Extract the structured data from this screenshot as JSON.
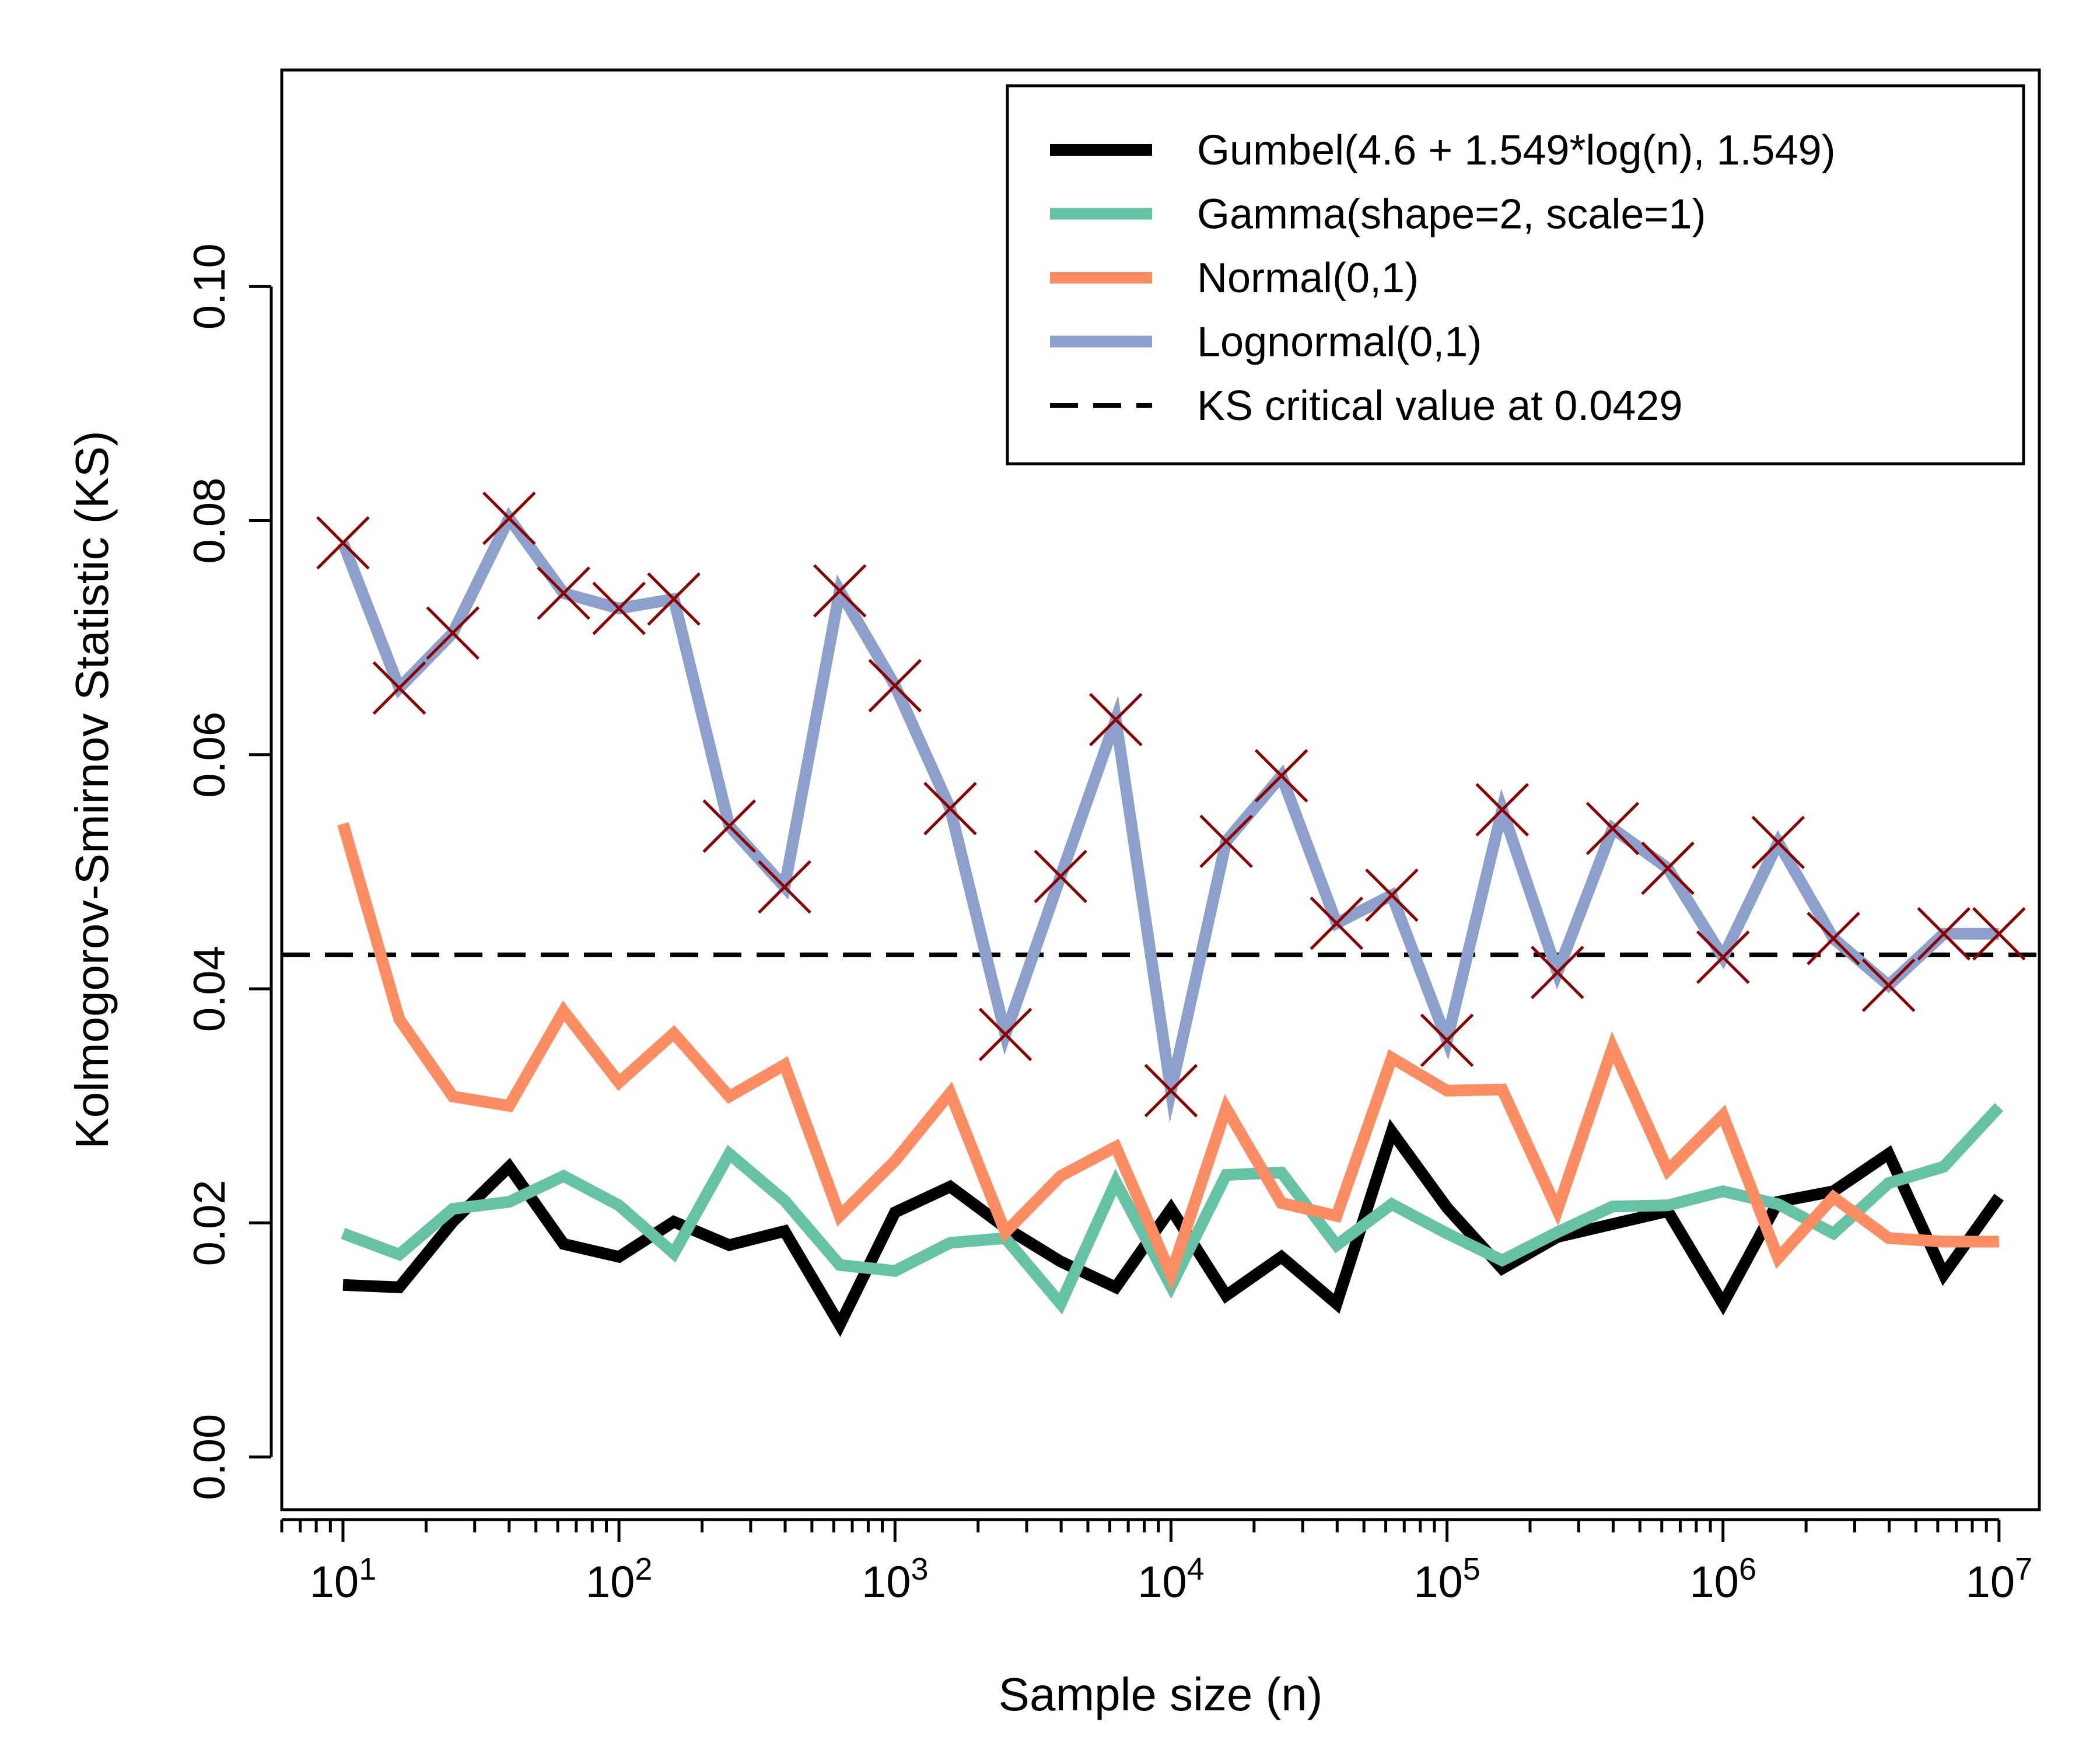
{
  "chart_data": {
    "type": "line",
    "xlabel": "Sample size (n)",
    "ylabel": "Kolmogorov-Smirnov Statistic (KS)",
    "x_scale": "log10",
    "xlim": [
      6,
      14000000
    ],
    "ylim": [
      -0.0045,
      0.1185
    ],
    "x_ticks": [
      {
        "value": 10,
        "base": "10",
        "exp": "1"
      },
      {
        "value": 100,
        "base": "10",
        "exp": "2"
      },
      {
        "value": 1000,
        "base": "10",
        "exp": "3"
      },
      {
        "value": 10000,
        "base": "10",
        "exp": "4"
      },
      {
        "value": 100000,
        "base": "10",
        "exp": "5"
      },
      {
        "value": 1000000,
        "base": "10",
        "exp": "6"
      },
      {
        "value": 10000000,
        "base": "10",
        "exp": "7"
      }
    ],
    "y_ticks": [
      {
        "value": 0.0,
        "label": "0.00"
      },
      {
        "value": 0.02,
        "label": "0.02"
      },
      {
        "value": 0.04,
        "label": "0.04"
      },
      {
        "value": 0.06,
        "label": "0.06"
      },
      {
        "value": 0.08,
        "label": "0.08"
      },
      {
        "value": 0.1,
        "label": "0.10"
      }
    ],
    "x": [
      10,
      16,
      25,
      40,
      63,
      100,
      158,
      251,
      398,
      631,
      1000,
      1585,
      2512,
      3981,
      6310,
      10000,
      15849,
      25119,
      39811,
      63096,
      100000,
      158489,
      251189,
      398107,
      630957,
      1000000,
      1584893,
      2511886,
      3981072,
      6309573,
      10000000
    ],
    "series": [
      {
        "name": "Gumbel(4.6 + 1.549*log(n), 1.549)",
        "color": "#000000",
        "values": [
          0.0147,
          0.0145,
          0.0201,
          0.0248,
          0.0182,
          0.0171,
          0.0201,
          0.0181,
          0.0193,
          0.0113,
          0.0209,
          0.0231,
          0.0196,
          0.0167,
          0.0145,
          0.0212,
          0.0138,
          0.0171,
          0.0131,
          0.0278,
          0.0213,
          0.0161,
          0.0188,
          0.0199,
          0.021,
          0.0131,
          0.0218,
          0.0227,
          0.0259,
          0.0156,
          0.0222
        ]
      },
      {
        "name": "Gamma(shape=2, scale=1)",
        "color": "#66C2A5",
        "values": [
          0.0191,
          0.0173,
          0.0212,
          0.0218,
          0.024,
          0.0215,
          0.0174,
          0.0259,
          0.0219,
          0.0164,
          0.0159,
          0.0183,
          0.0187,
          0.0131,
          0.0235,
          0.0146,
          0.0241,
          0.0243,
          0.0181,
          0.0216,
          0.0191,
          0.0168,
          0.0192,
          0.0214,
          0.0215,
          0.0227,
          0.0216,
          0.0191,
          0.0234,
          0.0248,
          0.0299
        ]
      },
      {
        "name": "Normal(0,1)",
        "color": "#FC8D62",
        "values": [
          0.0541,
          0.0374,
          0.0308,
          0.03,
          0.0381,
          0.032,
          0.0362,
          0.0308,
          0.0335,
          0.0206,
          0.0253,
          0.0311,
          0.0192,
          0.024,
          0.0265,
          0.0156,
          0.0298,
          0.0217,
          0.0206,
          0.0341,
          0.0313,
          0.0314,
          0.0211,
          0.035,
          0.0245,
          0.0292,
          0.017,
          0.0222,
          0.0187,
          0.0184,
          0.0184
        ]
      },
      {
        "name": "Lognormal(0,1)",
        "color": "#8DA0CB",
        "markers": true,
        "marker_color": "#8B0000",
        "values": [
          0.0781,
          0.0657,
          0.0704,
          0.0802,
          0.0738,
          0.0725,
          0.0733,
          0.0539,
          0.0487,
          0.074,
          0.0659,
          0.0554,
          0.0361,
          0.0496,
          0.063,
          0.0313,
          0.0526,
          0.0582,
          0.0456,
          0.048,
          0.0356,
          0.0553,
          0.0414,
          0.0537,
          0.0503,
          0.0427,
          0.0525,
          0.0443,
          0.0403,
          0.0447,
          0.0447
        ]
      }
    ],
    "reference_lines": [
      {
        "name": "KS critical value at 0.0429",
        "y": 0.0429,
        "style": "dashed",
        "color": "#000000"
      }
    ],
    "legend": {
      "position": "top-right",
      "entries": [
        {
          "label": "Gumbel(4.6 + 1.549*log(n), 1.549)",
          "color": "#000000",
          "style": "solid"
        },
        {
          "label": "Gamma(shape=2, scale=1)",
          "color": "#66C2A5",
          "style": "solid"
        },
        {
          "label": "Normal(0,1)",
          "color": "#FC8D62",
          "style": "solid"
        },
        {
          "label": "Lognormal(0,1)",
          "color": "#8DA0CB",
          "style": "solid"
        },
        {
          "label": "KS critical value at 0.0429",
          "color": "#000000",
          "style": "dashed"
        }
      ]
    },
    "grid": false
  }
}
